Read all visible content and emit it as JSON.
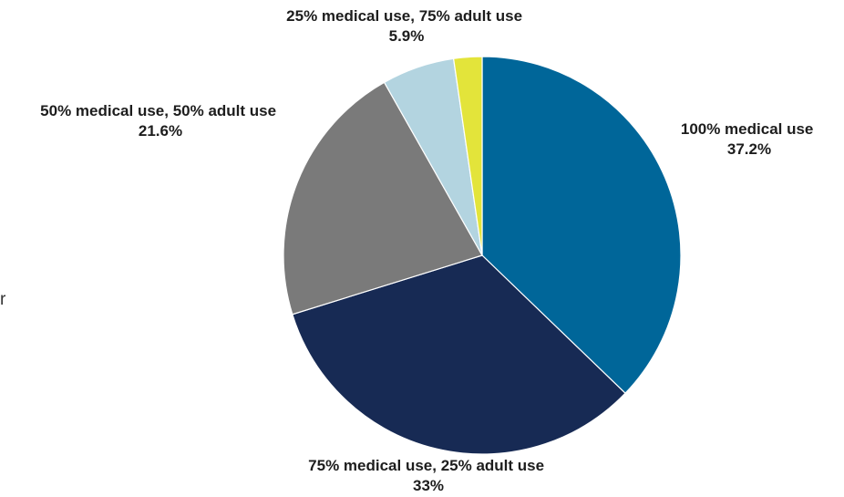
{
  "chart_data": {
    "type": "pie",
    "start_angle": "12 o'clock",
    "direction": "clockwise",
    "slices": [
      {
        "name": "100% medical use",
        "value": 37.2,
        "value_label": "37.2%",
        "color": "#006699"
      },
      {
        "name": "75% medical use, 25% adult use",
        "value": 33,
        "value_label": "33%",
        "color": "#172a54"
      },
      {
        "name": "50% medical use, 50% adult use",
        "value": 21.6,
        "value_label": "21.6%",
        "color": "#7a7a7a"
      },
      {
        "name": "25% medical use, 75% adult use",
        "value": 5.9,
        "value_label": "5.9%",
        "color": "#b3d4e0"
      },
      {
        "name": "",
        "value": 2.3,
        "value_label": "",
        "color": "#e3e43a"
      }
    ],
    "legend": "none"
  },
  "stray_text": "r"
}
